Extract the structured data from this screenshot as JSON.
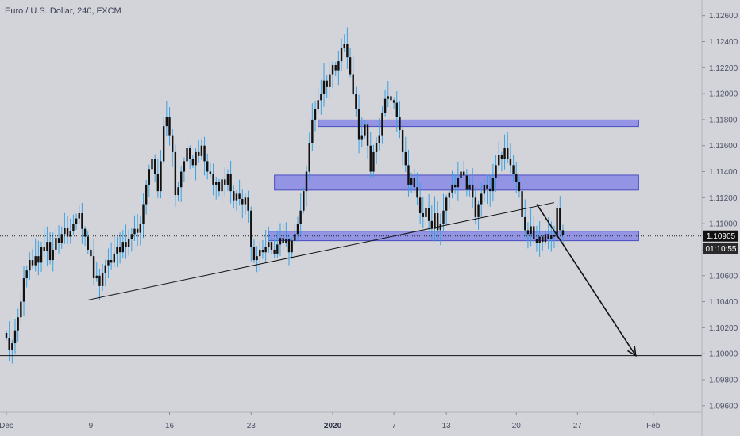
{
  "header": {
    "title": "Euro / U.S. Dollar, 240, FXCM"
  },
  "colors": {
    "background": "#d3d4da",
    "zone_fill": "#7e7fe6",
    "zone_stroke": "#4a4cc0",
    "candle": "#111111",
    "wick": "#3aa0e0",
    "axis_text": "#4a4f63",
    "price_tag_bg": "#111111",
    "timer_tag_bg": "#2a2a2a"
  },
  "chart_data": {
    "type": "candlestick",
    "title": "Euro / U.S. Dollar, 240, FXCM",
    "ylim": [
      1.0955,
      1.1272
    ],
    "y_ticks": [
      "1.12600",
      "1.12400",
      "1.12200",
      "1.12000",
      "1.11800",
      "1.11600",
      "1.11400",
      "1.11200",
      "1.11000",
      "1.10800",
      "1.10600",
      "1.10400",
      "1.10200",
      "1.10000",
      "1.09800",
      "1.09600"
    ],
    "x_ticks": [
      "Dec",
      "9",
      "16",
      "23",
      "2020",
      "7",
      "13",
      "20",
      "27",
      "Feb"
    ],
    "x_tick_index": [
      0,
      29,
      56,
      84,
      112,
      133,
      151,
      175,
      196,
      222
    ],
    "current_price": "1.10905",
    "countdown": "01:10:55",
    "closes": [
      1.1012,
      1.1003,
      1.1008,
      1.1018,
      1.1028,
      1.104,
      1.1058,
      1.1064,
      1.1072,
      1.1068,
      1.1075,
      1.107,
      1.1082,
      1.1079,
      1.1086,
      1.1072,
      1.108,
      1.1089,
      1.1085,
      1.1092,
      1.1097,
      1.109,
      1.1094,
      1.11,
      1.1104,
      1.1108,
      1.1096,
      1.109,
      1.108,
      1.1075,
      1.1058,
      1.106,
      1.1052,
      1.1062,
      1.1068,
      1.1072,
      1.107,
      1.1077,
      1.1082,
      1.1078,
      1.1086,
      1.1082,
      1.1088,
      1.1092,
      1.1096,
      1.1093,
      1.11,
      1.1115,
      1.113,
      1.1142,
      1.115,
      1.1138,
      1.1125,
      1.1148,
      1.1175,
      1.1182,
      1.1168,
      1.1155,
      1.1122,
      1.1128,
      1.114,
      1.1148,
      1.1158,
      1.115,
      1.1145,
      1.1155,
      1.1152,
      1.116,
      1.1148,
      1.114,
      1.1138,
      1.113,
      1.1132,
      1.1125,
      1.1134,
      1.113,
      1.1138,
      1.1125,
      1.1118,
      1.1123,
      1.1119,
      1.1115,
      1.112,
      1.111,
      1.1082,
      1.1072,
      1.1075,
      1.108,
      1.1078,
      1.1082,
      1.1086,
      1.108,
      1.1077,
      1.1084,
      1.1089,
      1.1085,
      1.1088,
      1.1078,
      1.1087,
      1.1092,
      1.11,
      1.111,
      1.1125,
      1.114,
      1.1162,
      1.118,
      1.1188,
      1.1195,
      1.12,
      1.121,
      1.1205,
      1.1215,
      1.1222,
      1.1218,
      1.1225,
      1.1235,
      1.1238,
      1.1228,
      1.1215,
      1.12,
      1.1188,
      1.1165,
      1.1168,
      1.1176,
      1.116,
      1.114,
      1.1155,
      1.1162,
      1.1168,
      1.1185,
      1.1196,
      1.1198,
      1.1195,
      1.1193,
      1.1182,
      1.1172,
      1.1155,
      1.1145,
      1.113,
      1.1135,
      1.1128,
      1.112,
      1.1108,
      1.1105,
      1.1112,
      1.1102,
      1.1096,
      1.1108,
      1.1095,
      1.11,
      1.111,
      1.112,
      1.1124,
      1.113,
      1.1128,
      1.1135,
      1.114,
      1.1137,
      1.1126,
      1.113,
      1.112,
      1.1105,
      1.1115,
      1.1123,
      1.113,
      1.1127,
      1.1125,
      1.1135,
      1.1145,
      1.1153,
      1.115,
      1.1158,
      1.115,
      1.1145,
      1.1138,
      1.1132,
      1.1125,
      1.1105,
      1.1095,
      1.1092,
      1.1098,
      1.1088,
      1.1085,
      1.109,
      1.1086,
      1.1092,
      1.1088,
      1.1091,
      1.109,
      1.1112,
      1.1095,
      1.1091
    ],
    "support_zones": [
      {
        "x_index": [
          107,
          217
        ],
        "y_range": [
          1.11747,
          1.11797
        ]
      },
      {
        "x_index": [
          92,
          217
        ],
        "y_range": [
          1.11258,
          1.11373
        ]
      },
      {
        "x_index": [
          90,
          217
        ],
        "y_range": [
          1.10869,
          1.10942
        ]
      }
    ],
    "trendline": {
      "from": [
        28,
        1.10413
      ],
      "to": [
        188,
        1.11162
      ]
    },
    "horizontal_line": 1.09985,
    "arrow": {
      "from": [
        182,
        1.1115
      ],
      "to": [
        216,
        1.09985
      ]
    }
  }
}
